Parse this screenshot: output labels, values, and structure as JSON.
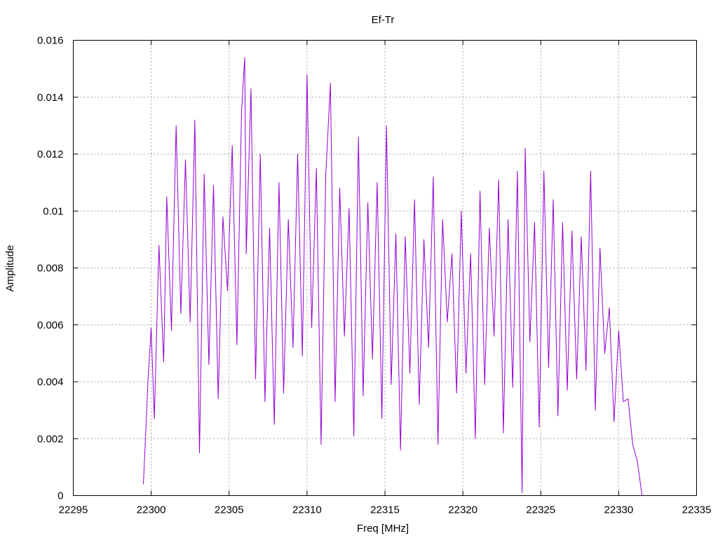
{
  "chart_data": {
    "type": "line",
    "title": "Ef-Tr",
    "xlabel": "Freq [MHz]",
    "ylabel": "Amplitude",
    "xlim": [
      22295,
      22335
    ],
    "ylim": [
      0,
      0.016
    ],
    "xticks": [
      "22295",
      "22300",
      "22305",
      "22310",
      "22315",
      "22320",
      "22325",
      "22330",
      "22335"
    ],
    "yticks": [
      "0",
      "0.002",
      "0.004",
      "0.006",
      "0.008",
      "0.01",
      "0.012",
      "0.014",
      "0.016"
    ],
    "grid": true,
    "series": [
      {
        "color": "#9400d3",
        "x": [
          22299.5,
          22299.8,
          22300.0,
          22300.2,
          22300.5,
          22300.8,
          22301.0,
          22301.3,
          22301.6,
          22301.9,
          22302.2,
          22302.5,
          22302.8,
          22303.1,
          22303.4,
          22303.7,
          22304.0,
          22304.3,
          22304.6,
          22304.9,
          22305.2,
          22305.5,
          22305.8,
          22306.0,
          22306.1,
          22306.4,
          22306.7,
          22307.0,
          22307.3,
          22307.6,
          22307.9,
          22308.2,
          22308.5,
          22308.8,
          22309.1,
          22309.4,
          22309.7,
          22310.0,
          22310.3,
          22310.6,
          22310.9,
          22311.2,
          22311.5,
          22311.8,
          22312.1,
          22312.4,
          22312.7,
          22313.0,
          22313.3,
          22313.6,
          22313.9,
          22314.2,
          22314.5,
          22314.8,
          22315.1,
          22315.4,
          22315.7,
          22316.0,
          22316.3,
          22316.6,
          22316.9,
          22317.2,
          22317.5,
          22317.8,
          22318.1,
          22318.4,
          22318.7,
          22319.0,
          22319.3,
          22319.6,
          22319.9,
          22320.2,
          22320.5,
          22320.8,
          22321.1,
          22321.4,
          22321.7,
          22322.0,
          22322.3,
          22322.6,
          22322.9,
          22323.2,
          22323.5,
          22323.8,
          22324.0,
          22324.3,
          22324.6,
          22324.9,
          22325.2,
          22325.5,
          22325.8,
          22326.1,
          22326.4,
          22326.7,
          22327.0,
          22327.3,
          22327.6,
          22327.9,
          22328.2,
          22328.5,
          22328.8,
          22329.1,
          22329.4,
          22329.7,
          22330.0,
          22330.3,
          22330.6,
          22330.9,
          22331.2,
          22331.5
        ],
        "y": [
          0.0004,
          0.0041,
          0.0059,
          0.0027,
          0.0088,
          0.0047,
          0.0105,
          0.0058,
          0.013,
          0.0064,
          0.0118,
          0.0061,
          0.0132,
          0.0015,
          0.0113,
          0.0046,
          0.0109,
          0.0034,
          0.0098,
          0.0072,
          0.0123,
          0.0053,
          0.0135,
          0.0154,
          0.0085,
          0.0143,
          0.0041,
          0.012,
          0.0033,
          0.0094,
          0.0025,
          0.011,
          0.0036,
          0.0097,
          0.0052,
          0.012,
          0.0049,
          0.0148,
          0.0059,
          0.0115,
          0.0018,
          0.0112,
          0.0145,
          0.0033,
          0.0108,
          0.0056,
          0.0101,
          0.0021,
          0.0126,
          0.0035,
          0.0103,
          0.0048,
          0.011,
          0.0027,
          0.013,
          0.0039,
          0.0092,
          0.0016,
          0.0091,
          0.0043,
          0.0104,
          0.0032,
          0.009,
          0.0052,
          0.0112,
          0.0018,
          0.0097,
          0.0061,
          0.0085,
          0.0036,
          0.01,
          0.0043,
          0.0085,
          0.002,
          0.0107,
          0.0039,
          0.0094,
          0.0056,
          0.0111,
          0.0022,
          0.0097,
          0.0038,
          0.0114,
          0.0001,
          0.0122,
          0.0054,
          0.0096,
          0.0024,
          0.0114,
          0.0045,
          0.0104,
          0.0028,
          0.0096,
          0.0037,
          0.0093,
          0.0041,
          0.0091,
          0.0044,
          0.0114,
          0.003,
          0.0087,
          0.005,
          0.0066,
          0.0026,
          0.0058,
          0.0033,
          0.0034,
          0.0018,
          0.0012,
          0.0
        ]
      }
    ]
  }
}
